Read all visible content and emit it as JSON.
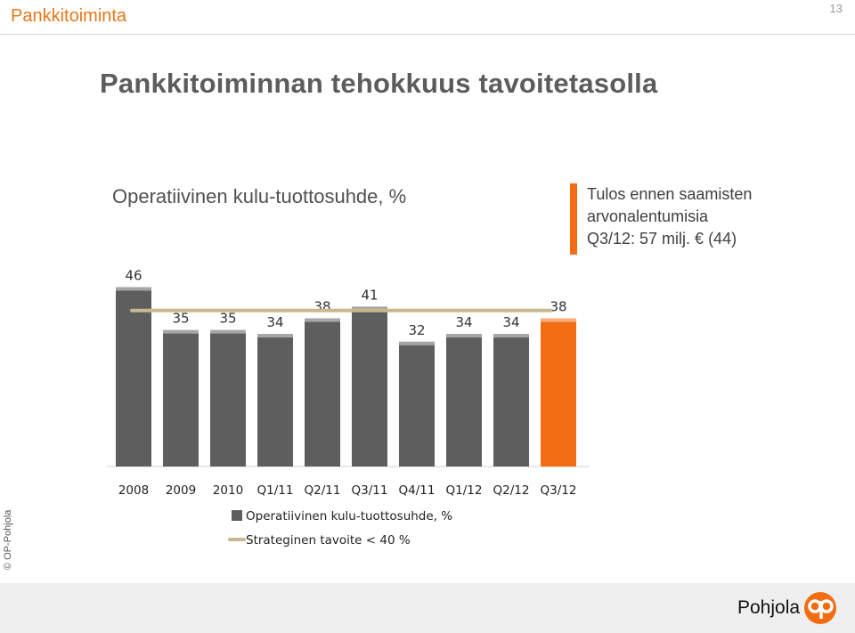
{
  "header": {
    "section": "Pankkitoiminta",
    "page_number": "13"
  },
  "page_title": "Pankkitoiminnan tehokkuus tavoitetasolla",
  "side_note": {
    "lines": [
      "Tulos ennen saamisten",
      "arvonalentumisia",
      "Q3/12: 57 milj. € (44)"
    ],
    "accent_color": "#f26c12"
  },
  "copyright": "© OP-Pohjola",
  "brand": {
    "name": "Pohjola",
    "logo_icon": "op-logo-icon",
    "logo_color": "#f26c12"
  },
  "chart_data": {
    "type": "bar",
    "title": "Operatiivinen kulu-tuottosuhde, %",
    "categories": [
      "2008",
      "2009",
      "2010",
      "Q1/11",
      "Q2/11",
      "Q3/11",
      "Q4/11",
      "Q1/12",
      "Q2/12",
      "Q3/12"
    ],
    "series": [
      {
        "name": "Operatiivinen kulu-tuottosuhde, %",
        "values": [
          46,
          35,
          35,
          34,
          38,
          41,
          32,
          34,
          34,
          38
        ],
        "color": "#5e5e5e",
        "highlight_color": "#f26c12",
        "highlight_index": 9
      },
      {
        "name": "Strateginen tavoite < 40 %",
        "type": "line",
        "values": [
          40,
          40,
          40,
          40,
          40,
          40,
          40,
          40,
          40,
          40
        ],
        "color": "#c8b88f"
      }
    ],
    "data_labels": true,
    "grid": false
  }
}
